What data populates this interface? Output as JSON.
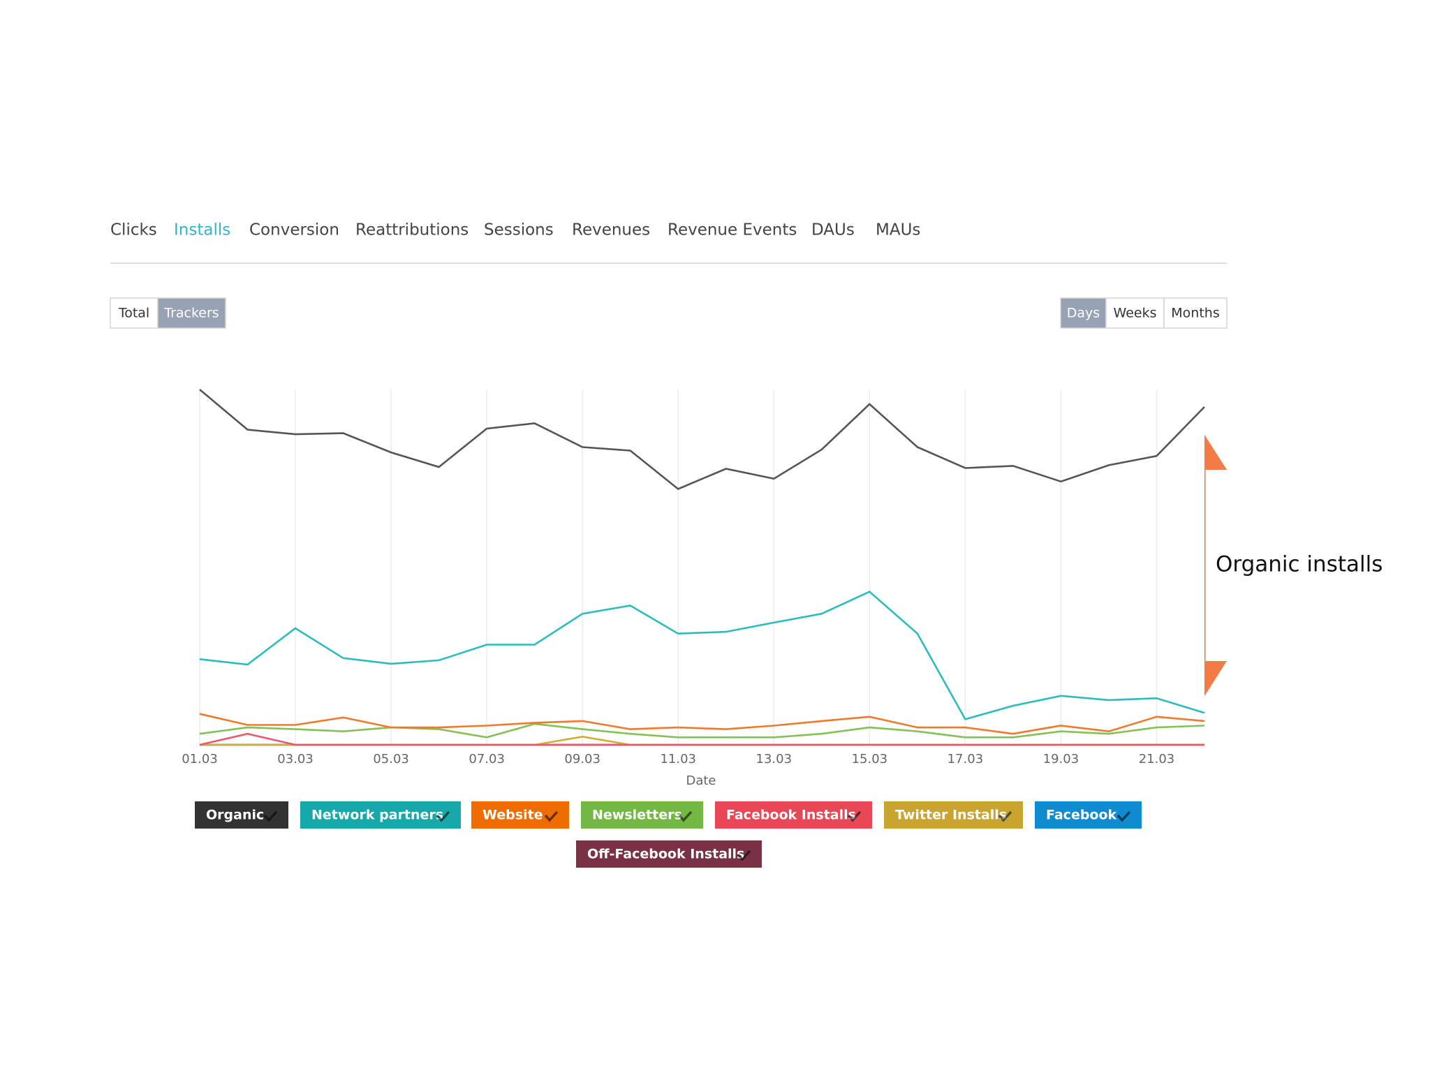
{
  "tabs": [
    {
      "label": "Clicks"
    },
    {
      "label": "Installs",
      "active": true
    },
    {
      "label": "Conversion"
    },
    {
      "label": "Reattributions"
    },
    {
      "label": "Sessions"
    },
    {
      "label": "Revenues"
    },
    {
      "label": "Revenue Events"
    },
    {
      "label": "DAUs"
    },
    {
      "label": "MAUs"
    }
  ],
  "mode_buttons": [
    {
      "label": "Total"
    },
    {
      "label": "Trackers",
      "active": true
    }
  ],
  "period_buttons": [
    {
      "label": "Days",
      "active": true
    },
    {
      "label": "Weeks"
    },
    {
      "label": "Months"
    }
  ],
  "annotation": "Organic installs",
  "chart_data": {
    "type": "line",
    "x_label": "Date",
    "categories": [
      "01.03",
      null,
      "03.03",
      null,
      "05.03",
      null,
      "07.03",
      null,
      "09.03",
      null,
      "11.03",
      null,
      "13.03",
      null,
      "15.03",
      null,
      "17.03",
      null,
      "19.03",
      null,
      "21.03",
      null
    ],
    "ylim": [
      0,
      100
    ],
    "grid": true,
    "series": [
      {
        "name": "Organic",
        "color": "#555559",
        "legend_color": "#333333",
        "values": [
          100,
          88.7,
          87.4,
          87.7,
          82.3,
          78.2,
          89,
          90.5,
          83.8,
          82.8,
          72,
          77.7,
          74.9,
          83.1,
          95.9,
          83.8,
          77.9,
          78.5,
          74.1,
          78.7,
          81.3,
          95.1
        ]
      },
      {
        "name": "Network partners",
        "color": "#2cbcbc",
        "legend_color": "#17a9a9",
        "values": [
          24.1,
          22.6,
          32.8,
          24.4,
          22.8,
          23.8,
          28.2,
          28.2,
          36.9,
          39.2,
          31.3,
          31.8,
          34.4,
          36.9,
          43.1,
          31.3,
          7.2,
          11,
          13.8,
          12.6,
          13.1,
          9
        ]
      },
      {
        "name": "Website",
        "color": "#f07a2a",
        "legend_color": "#ef6c00",
        "values": [
          8.7,
          5.6,
          5.6,
          7.7,
          4.9,
          4.9,
          5.4,
          6.2,
          6.7,
          4.4,
          4.9,
          4.4,
          5.4,
          6.7,
          7.9,
          4.9,
          4.9,
          3.1,
          5.4,
          3.8,
          7.9,
          6.7
        ]
      },
      {
        "name": "Newsletters",
        "color": "#84c256",
        "legend_color": "#72b843",
        "values": [
          3.1,
          4.9,
          4.4,
          3.8,
          4.9,
          4.4,
          2.1,
          5.9,
          4.4,
          3.1,
          2.1,
          2.1,
          2.1,
          3.1,
          4.9,
          3.8,
          2.1,
          2.1,
          3.8,
          3.1,
          4.9,
          5.4
        ]
      },
      {
        "name": "Facebook Installs",
        "color": "#e85a6a",
        "legend_color": "#e84855",
        "values": [
          0,
          3.1,
          0,
          0,
          0,
          0,
          0,
          0,
          0,
          0,
          0,
          0,
          0,
          0,
          0,
          0,
          0,
          0,
          0,
          0,
          0,
          0
        ]
      },
      {
        "name": "Twitter Installs",
        "color": "#d1ad3c",
        "legend_color": "#c9a42f",
        "values": [
          0,
          0,
          0,
          0,
          0,
          0,
          0,
          0,
          2.3,
          0,
          0,
          0,
          0,
          0,
          0,
          0,
          0,
          0,
          0,
          0,
          0,
          0
        ]
      },
      {
        "name": "Facebook",
        "color": "#0e8ccf",
        "legend_color": "#0e8ccf",
        "values": [
          0,
          0,
          0,
          0,
          0,
          0,
          0,
          0,
          0,
          0,
          0,
          0,
          0,
          0,
          0,
          0,
          0,
          0,
          0,
          0,
          0,
          0
        ]
      },
      {
        "name": "Off-Facebook Installs",
        "color": "#7a3045",
        "legend_color": "#7a3045",
        "values": [
          0,
          0,
          0,
          0,
          0,
          0,
          0,
          0,
          0,
          0,
          0,
          0,
          0,
          0,
          0,
          0,
          0,
          0,
          0,
          0,
          0,
          0
        ]
      }
    ]
  }
}
